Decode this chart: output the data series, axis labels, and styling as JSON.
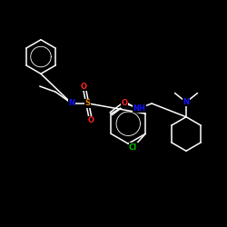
{
  "background_color": "#000000",
  "bond_color": "#ffffff",
  "atom_colors": {
    "N": "#1010ff",
    "O": "#ff2020",
    "S": "#e08000",
    "Cl": "#00bb00",
    "C": "#ffffff"
  },
  "figsize": [
    2.5,
    2.5
  ],
  "dpi": 100,
  "lw": 1.1,
  "fs": 6.0
}
